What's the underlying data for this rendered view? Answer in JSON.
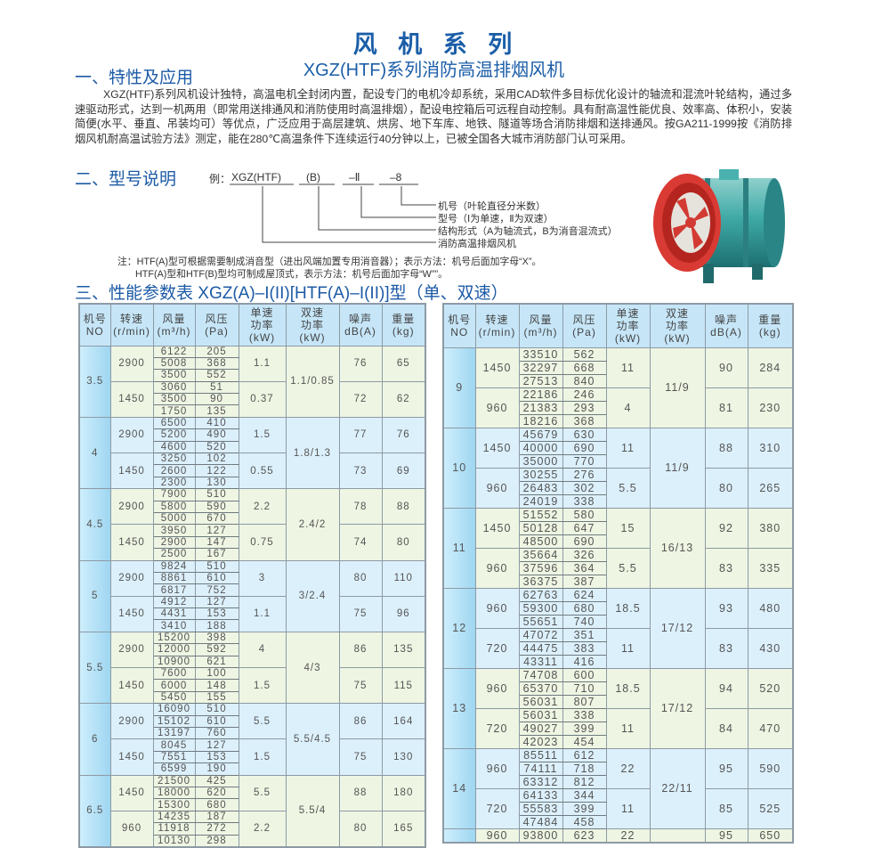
{
  "title": "风 机 系 列",
  "subtitle": "XGZ(HTF)系列消防高温排烟风机",
  "section1": "一、特性及应用",
  "description": "XGZ(HTF)系列风机设计独特，高温电机全封闭内置，配设专门的电机冷却系统，采用CAD软件多目标优化设计的轴流和混流叶轮结构，通过多速驱动形式，达到一机两用（即常用送排通风和消防使用时高温排烟），配设电控箱后可远程自动控制。具有耐高温性能优良、效率高、体积小，安装简便(水平、垂直、吊装均可）等优点，广泛应用于高层建筑、烘房、地下车库、地铁、隧道等场合消防排烟和送排通风。按GA211-1999按《消防排烟风机耐高温试验方法》测定，能在280℃高温条件下连续运行40分钟以上，已被全国各大城市消防部门认可采用。",
  "section2": "二、型号说明",
  "model": {
    "prefix": "例：",
    "parts": [
      "XGZ(HTF)",
      "(B)",
      "–Ⅱ",
      "–8"
    ],
    "labels": [
      "机号（叶轮直径分米数）",
      "型号（Ⅰ为单速，Ⅱ为双速）",
      "结构形式（A为轴流式，B为消音混流式）",
      "消防高温排烟风机"
    ]
  },
  "notes": [
    "注：HTF(A)型可根据需要制成消音型（进出风端加置专用消音器）；表示方法：机号后面加字母“X”。",
    "HTF(A)型和HTF(B)型均可制成屋顶式，表示方法：机号后面加字母“W””。"
  ],
  "section3": "三、性能参数表 XGZ(A)–I(II)[HTF(A)–I(II)]型（单、双速）",
  "colors": {
    "heading": "#1b5ea8",
    "header_bg": "#c6e6f8",
    "group_green": "#eef5e2",
    "group_blue": "#dcf0fc"
  },
  "headers": [
    "机号\nNO",
    "转速\n(r/min)",
    "风量\n(m³/h)",
    "风压\n(Pa)",
    "单速\n功率\n(kW)",
    "双速\n功率\n(kW)",
    "噪声\ndB(A)",
    "重量\n(kg)"
  ],
  "tables": [
    {
      "groups": [
        {
          "no": "3.5",
          "dual": "1.1/0.85",
          "speeds": [
            {
              "rpm": "2900",
              "points": [
                [
                  "6122",
                  "205"
                ],
                [
                  "5008",
                  "368"
                ],
                [
                  "3500",
                  "552"
                ]
              ],
              "single": "1.1",
              "noise": "76",
              "weight": "65"
            },
            {
              "rpm": "1450",
              "points": [
                [
                  "3060",
                  "51"
                ],
                [
                  "3500",
                  "90"
                ],
                [
                  "1750",
                  "135"
                ]
              ],
              "single": "0.37",
              "noise": "72",
              "weight": "62"
            }
          ]
        },
        {
          "no": "4",
          "dual": "1.8/1.3",
          "speeds": [
            {
              "rpm": "2900",
              "points": [
                [
                  "6500",
                  "410"
                ],
                [
                  "5200",
                  "490"
                ],
                [
                  "4600",
                  "520"
                ]
              ],
              "single": "1.5",
              "noise": "77",
              "weight": "76"
            },
            {
              "rpm": "1450",
              "points": [
                [
                  "3250",
                  "102"
                ],
                [
                  "2600",
                  "122"
                ],
                [
                  "2300",
                  "130"
                ]
              ],
              "single": "0.55",
              "noise": "73",
              "weight": "69"
            }
          ]
        },
        {
          "no": "4.5",
          "dual": "2.4/2",
          "speeds": [
            {
              "rpm": "2900",
              "points": [
                [
                  "7900",
                  "510"
                ],
                [
                  "5800",
                  "590"
                ],
                [
                  "5000",
                  "670"
                ]
              ],
              "single": "2.2",
              "noise": "78",
              "weight": "88"
            },
            {
              "rpm": "1450",
              "points": [
                [
                  "3950",
                  "127"
                ],
                [
                  "2900",
                  "147"
                ],
                [
                  "2500",
                  "167"
                ]
              ],
              "single": "0.75",
              "noise": "74",
              "weight": "80"
            }
          ]
        },
        {
          "no": "5",
          "dual": "3/2.4",
          "speeds": [
            {
              "rpm": "2900",
              "points": [
                [
                  "9824",
                  "510"
                ],
                [
                  "8861",
                  "610"
                ],
                [
                  "6817",
                  "752"
                ]
              ],
              "single": "3",
              "noise": "80",
              "weight": "110"
            },
            {
              "rpm": "1450",
              "points": [
                [
                  "4912",
                  "127"
                ],
                [
                  "4431",
                  "153"
                ],
                [
                  "3410",
                  "188"
                ]
              ],
              "single": "1.1",
              "noise": "75",
              "weight": "96"
            }
          ]
        },
        {
          "no": "5.5",
          "dual": "4/3",
          "speeds": [
            {
              "rpm": "2900",
              "points": [
                [
                  "15200",
                  "398"
                ],
                [
                  "12000",
                  "592"
                ],
                [
                  "10900",
                  "621"
                ]
              ],
              "single": "4",
              "noise": "86",
              "weight": "135"
            },
            {
              "rpm": "1450",
              "points": [
                [
                  "7600",
                  "100"
                ],
                [
                  "6000",
                  "148"
                ],
                [
                  "5450",
                  "155"
                ]
              ],
              "single": "1.5",
              "noise": "75",
              "weight": "115"
            }
          ]
        },
        {
          "no": "6",
          "dual": "5.5/4.5",
          "speeds": [
            {
              "rpm": "2900",
              "points": [
                [
                  "16090",
                  "510"
                ],
                [
                  "15102",
                  "610"
                ],
                [
                  "13197",
                  "760"
                ]
              ],
              "single": "5.5",
              "noise": "86",
              "weight": "164"
            },
            {
              "rpm": "1450",
              "points": [
                [
                  "8045",
                  "127"
                ],
                [
                  "7551",
                  "153"
                ],
                [
                  "6599",
                  "190"
                ]
              ],
              "single": "1.5",
              "noise": "75",
              "weight": "130"
            }
          ]
        },
        {
          "no": "6.5",
          "dual": "5.5/4",
          "speeds": [
            {
              "rpm": "1450",
              "points": [
                [
                  "21500",
                  "425"
                ],
                [
                  "18000",
                  "620"
                ],
                [
                  "15300",
                  "680"
                ]
              ],
              "single": "5.5",
              "noise": "88",
              "weight": "180"
            },
            {
              "rpm": "960",
              "points": [
                [
                  "14235",
                  "187"
                ],
                [
                  "11918",
                  "272"
                ],
                [
                  "10130",
                  "298"
                ]
              ],
              "single": "2.2",
              "noise": "80",
              "weight": "165"
            }
          ]
        }
      ]
    },
    {
      "groups": [
        {
          "no": "9",
          "dual": "11/9",
          "speeds": [
            {
              "rpm": "1450",
              "points": [
                [
                  "33510",
                  "562"
                ],
                [
                  "32297",
                  "668"
                ],
                [
                  "27513",
                  "840"
                ]
              ],
              "single": "11",
              "noise": "90",
              "weight": "284"
            },
            {
              "rpm": "960",
              "points": [
                [
                  "22186",
                  "246"
                ],
                [
                  "21383",
                  "293"
                ],
                [
                  "18216",
                  "368"
                ]
              ],
              "single": "4",
              "noise": "81",
              "weight": "230"
            }
          ]
        },
        {
          "no": "10",
          "dual": "11/9",
          "speeds": [
            {
              "rpm": "1450",
              "points": [
                [
                  "45679",
                  "630"
                ],
                [
                  "40000",
                  "690"
                ],
                [
                  "35000",
                  "770"
                ]
              ],
              "single": "11",
              "noise": "88",
              "weight": "310"
            },
            {
              "rpm": "960",
              "points": [
                [
                  "30255",
                  "276"
                ],
                [
                  "26483",
                  "302"
                ],
                [
                  "24019",
                  "338"
                ]
              ],
              "single": "5.5",
              "noise": "80",
              "weight": "265"
            }
          ]
        },
        {
          "no": "11",
          "dual": "16/13",
          "speeds": [
            {
              "rpm": "1450",
              "points": [
                [
                  "51552",
                  "580"
                ],
                [
                  "50128",
                  "647"
                ],
                [
                  "48500",
                  "690"
                ]
              ],
              "single": "15",
              "noise": "92",
              "weight": "380"
            },
            {
              "rpm": "960",
              "points": [
                [
                  "35664",
                  "326"
                ],
                [
                  "37596",
                  "364"
                ],
                [
                  "36375",
                  "387"
                ]
              ],
              "single": "5.5",
              "noise": "83",
              "weight": "335"
            }
          ]
        },
        {
          "no": "12",
          "dual": "17/12",
          "speeds": [
            {
              "rpm": "960",
              "points": [
                [
                  "62763",
                  "624"
                ],
                [
                  "59300",
                  "680"
                ],
                [
                  "55651",
                  "740"
                ]
              ],
              "single": "18.5",
              "noise": "93",
              "weight": "480"
            },
            {
              "rpm": "720",
              "points": [
                [
                  "47072",
                  "351"
                ],
                [
                  "44475",
                  "383"
                ],
                [
                  "43311",
                  "416"
                ]
              ],
              "single": "11",
              "noise": "83",
              "weight": "430"
            }
          ]
        },
        {
          "no": "13",
          "dual": "17/12",
          "speeds": [
            {
              "rpm": "960",
              "points": [
                [
                  "74708",
                  "600"
                ],
                [
                  "65370",
                  "710"
                ],
                [
                  "56031",
                  "807"
                ]
              ],
              "single": "18.5",
              "noise": "94",
              "weight": "520"
            },
            {
              "rpm": "720",
              "points": [
                [
                  "56031",
                  "338"
                ],
                [
                  "49027",
                  "399"
                ],
                [
                  "42023",
                  "454"
                ]
              ],
              "single": "11",
              "noise": "84",
              "weight": "470"
            }
          ]
        },
        {
          "no": "14",
          "dual": "22/11",
          "speeds": [
            {
              "rpm": "960",
              "points": [
                [
                  "85511",
                  "612"
                ],
                [
                  "74111",
                  "718"
                ],
                [
                  "63312",
                  "812"
                ]
              ],
              "single": "22",
              "noise": "95",
              "weight": "590"
            },
            {
              "rpm": "720",
              "points": [
                [
                  "64133",
                  "344"
                ],
                [
                  "55583",
                  "399"
                ],
                [
                  "47484",
                  "458"
                ]
              ],
              "single": "11",
              "noise": "85",
              "weight": "525"
            }
          ]
        },
        {
          "no": "",
          "dual": "",
          "speeds": [
            {
              "rpm": "960",
              "points": [
                [
                  "93800",
                  "623"
                ]
              ],
              "single": "22",
              "noise": "95",
              "weight": "650"
            }
          ]
        }
      ]
    }
  ]
}
